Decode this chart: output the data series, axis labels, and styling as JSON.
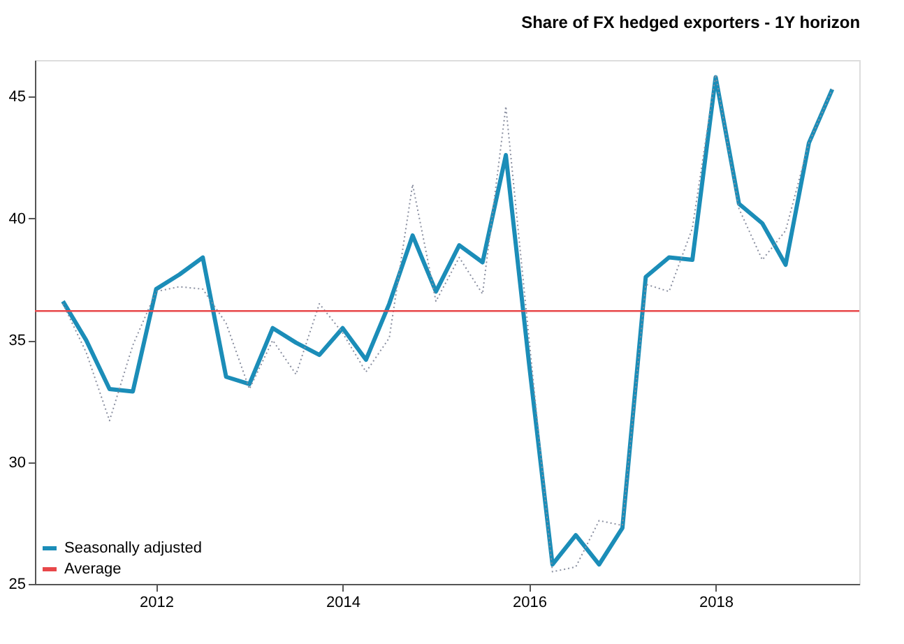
{
  "chart_data": {
    "type": "line",
    "title": "Share of FX hedged exporters - 1Y horizon",
    "x": [
      2011.0,
      2011.25,
      2011.5,
      2011.75,
      2012.0,
      2012.25,
      2012.5,
      2012.75,
      2013.0,
      2013.25,
      2013.5,
      2013.75,
      2014.0,
      2014.25,
      2014.5,
      2014.75,
      2015.0,
      2015.25,
      2015.5,
      2015.75,
      2016.0,
      2016.25,
      2016.5,
      2016.75,
      2017.0,
      2017.25,
      2017.5,
      2017.75,
      2018.0,
      2018.25,
      2018.5,
      2018.75,
      2019.0,
      2019.25
    ],
    "series": [
      {
        "name": "Seasonally adjusted",
        "color": "#1b8db8",
        "line_style": "solid",
        "values": [
          36.6,
          35.0,
          33.0,
          32.9,
          37.1,
          37.7,
          38.4,
          33.5,
          33.2,
          35.5,
          34.9,
          34.4,
          35.5,
          34.2,
          36.5,
          39.3,
          37.0,
          38.9,
          38.2,
          42.6,
          34.0,
          25.8,
          27.0,
          25.8,
          27.3,
          37.6,
          38.4,
          38.3,
          45.8,
          40.6,
          39.8,
          38.1,
          43.1,
          45.3
        ]
      },
      {
        "color": "#8a8fa0",
        "line_style": "dotted",
        "values": [
          36.5,
          34.5,
          31.7,
          34.8,
          37.0,
          37.2,
          37.1,
          35.7,
          33.0,
          35.0,
          33.6,
          36.5,
          35.3,
          33.7,
          35.1,
          41.4,
          36.6,
          38.4,
          36.9,
          44.6,
          35.0,
          25.5,
          25.7,
          27.6,
          27.4,
          37.3,
          37.0,
          39.6,
          45.9,
          40.4,
          38.3,
          39.5,
          43.1,
          45.3
        ]
      }
    ],
    "ref_lines": [
      {
        "axis": "y",
        "value": 36.2,
        "label": "Average",
        "color": "#e8474a",
        "line_style": "solid"
      }
    ],
    "xlim": [
      2010.7,
      2019.54
    ],
    "xticks": [
      2012,
      2014,
      2016,
      2018
    ],
    "ylim": [
      25,
      46.5
    ],
    "yticks": [
      25,
      30,
      35,
      40,
      45
    ],
    "grid": false,
    "legend": "bottom left"
  }
}
